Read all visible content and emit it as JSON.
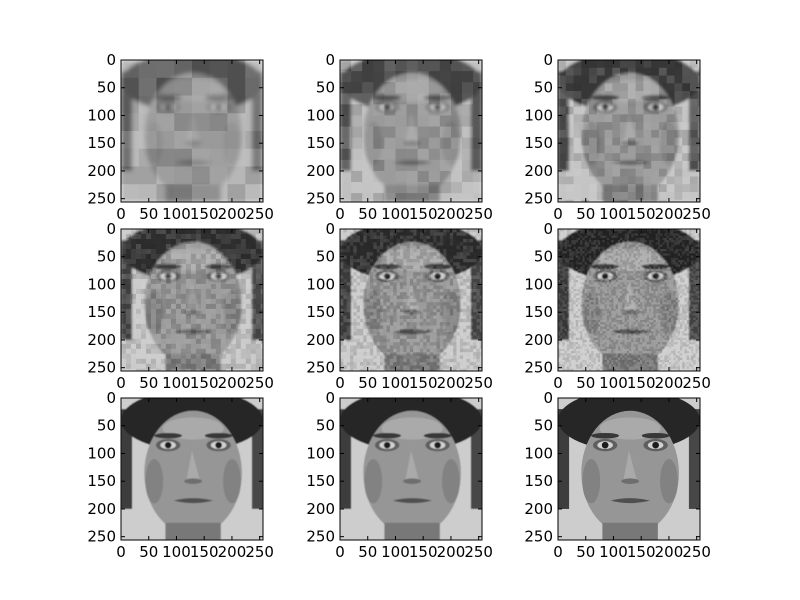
{
  "figure": {
    "background": "#ffffff",
    "axis_color": "#000000"
  },
  "chart_data": [
    {
      "type": "image",
      "panel": 1,
      "content": "grayscale face image (coarse block reconstruction)",
      "xlim": [
        0,
        256
      ],
      "ylim": [
        256,
        0
      ],
      "x_ticks": [
        0,
        50,
        100,
        150,
        200,
        250
      ],
      "y_ticks": [
        0,
        50,
        100,
        150,
        200,
        250
      ],
      "x_tick_labels": [
        "0",
        "50",
        "100",
        "150",
        "200",
        "250"
      ],
      "y_tick_labels": [
        "0",
        "50",
        "100",
        "150",
        "200",
        "250"
      ],
      "block_size": 32,
      "blur": 1.2,
      "contrast": 0.55
    },
    {
      "type": "image",
      "panel": 2,
      "content": "grayscale face image (block reconstruction)",
      "xlim": [
        0,
        256
      ],
      "ylim": [
        256,
        0
      ],
      "x_ticks": [
        0,
        50,
        100,
        150,
        200,
        250
      ],
      "y_ticks": [
        0,
        50,
        100,
        150,
        200,
        250
      ],
      "x_tick_labels": [
        "0",
        "50",
        "100",
        "150",
        "200",
        "250"
      ],
      "y_tick_labels": [
        "0",
        "50",
        "100",
        "150",
        "200",
        "250"
      ],
      "block_size": 20,
      "blur": 0.9,
      "contrast": 0.7
    },
    {
      "type": "image",
      "panel": 3,
      "content": "grayscale face image (block reconstruction)",
      "xlim": [
        0,
        256
      ],
      "ylim": [
        256,
        0
      ],
      "x_ticks": [
        0,
        50,
        100,
        150,
        200,
        250
      ],
      "y_ticks": [
        0,
        50,
        100,
        150,
        200,
        250
      ],
      "x_tick_labels": [
        "0",
        "50",
        "100",
        "150",
        "200",
        "250"
      ],
      "y_tick_labels": [
        "0",
        "50",
        "100",
        "150",
        "200",
        "250"
      ],
      "block_size": 14,
      "blur": 0.7,
      "contrast": 0.8
    },
    {
      "type": "image",
      "panel": 4,
      "content": "grayscale face image",
      "xlim": [
        0,
        256
      ],
      "ylim": [
        256,
        0
      ],
      "x_ticks": [
        0,
        50,
        100,
        150,
        200,
        250
      ],
      "y_ticks": [
        0,
        50,
        100,
        150,
        200,
        250
      ],
      "x_tick_labels": [
        "0",
        "50",
        "100",
        "150",
        "200",
        "250"
      ],
      "y_tick_labels": [
        "0",
        "50",
        "100",
        "150",
        "200",
        "250"
      ],
      "block_size": 9,
      "blur": 0.5,
      "contrast": 0.9
    },
    {
      "type": "image",
      "panel": 5,
      "content": "grayscale face image",
      "xlim": [
        0,
        256
      ],
      "ylim": [
        256,
        0
      ],
      "x_ticks": [
        0,
        50,
        100,
        150,
        200,
        250
      ],
      "y_ticks": [
        0,
        50,
        100,
        150,
        200,
        250
      ],
      "x_tick_labels": [
        "0",
        "50",
        "100",
        "150",
        "200",
        "250"
      ],
      "y_tick_labels": [
        "0",
        "50",
        "100",
        "150",
        "200",
        "250"
      ],
      "block_size": 6,
      "blur": 0.4,
      "contrast": 0.95
    },
    {
      "type": "image",
      "panel": 6,
      "content": "grayscale face image",
      "xlim": [
        0,
        256
      ],
      "ylim": [
        256,
        0
      ],
      "x_ticks": [
        0,
        50,
        100,
        150,
        200,
        250
      ],
      "y_ticks": [
        0,
        50,
        100,
        150,
        200,
        250
      ],
      "x_tick_labels": [
        "0",
        "50",
        "100",
        "150",
        "200",
        "250"
      ],
      "y_tick_labels": [
        "0",
        "50",
        "100",
        "150",
        "200",
        "250"
      ],
      "block_size": 4,
      "blur": 0.3,
      "contrast": 1.0
    },
    {
      "type": "image",
      "panel": 7,
      "content": "grayscale face image",
      "xlim": [
        0,
        256
      ],
      "ylim": [
        256,
        0
      ],
      "x_ticks": [
        0,
        50,
        100,
        150,
        200,
        250
      ],
      "y_ticks": [
        0,
        50,
        100,
        150,
        200,
        250
      ],
      "x_tick_labels": [
        "0",
        "50",
        "100",
        "150",
        "200",
        "250"
      ],
      "y_tick_labels": [
        "0",
        "50",
        "100",
        "150",
        "200",
        "250"
      ],
      "block_size": 0,
      "blur": 0.25,
      "contrast": 1.0
    },
    {
      "type": "image",
      "panel": 8,
      "content": "grayscale face image",
      "xlim": [
        0,
        256
      ],
      "ylim": [
        256,
        0
      ],
      "x_ticks": [
        0,
        50,
        100,
        150,
        200,
        250
      ],
      "y_ticks": [
        0,
        50,
        100,
        150,
        200,
        250
      ],
      "x_tick_labels": [
        "0",
        "50",
        "100",
        "150",
        "200",
        "250"
      ],
      "y_tick_labels": [
        "0",
        "50",
        "100",
        "150",
        "200",
        "250"
      ],
      "block_size": 0,
      "blur": 0.15,
      "contrast": 1.0
    },
    {
      "type": "image",
      "panel": 9,
      "content": "grayscale face image",
      "xlim": [
        0,
        256
      ],
      "ylim": [
        256,
        0
      ],
      "x_ticks": [
        0,
        50,
        100,
        150,
        200,
        250
      ],
      "y_ticks": [
        0,
        50,
        100,
        150,
        200,
        250
      ],
      "x_tick_labels": [
        "0",
        "50",
        "100",
        "150",
        "200",
        "250"
      ],
      "y_tick_labels": [
        "0",
        "50",
        "100",
        "150",
        "200",
        "250"
      ],
      "block_size": 0,
      "blur": 0.0,
      "contrast": 1.0
    }
  ]
}
